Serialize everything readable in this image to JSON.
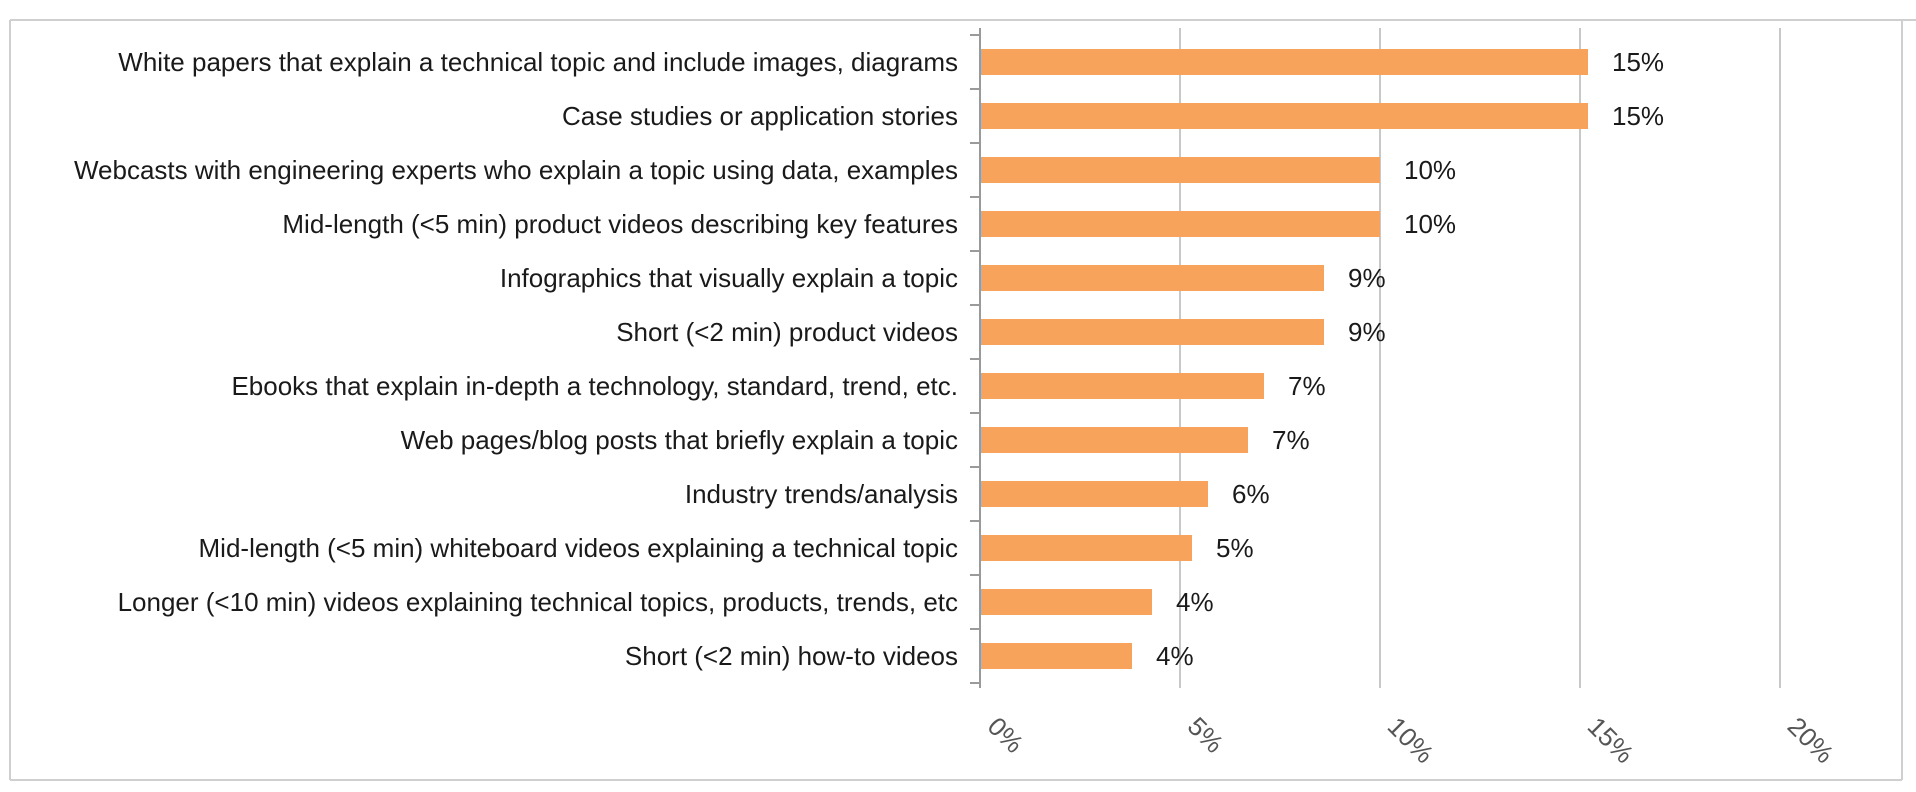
{
  "chart_data": {
    "type": "bar",
    "orientation": "horizontal",
    "categories": [
      "White papers that explain a technical topic and include images, diagrams",
      "Case studies or application stories",
      "Webcasts with engineering experts who explain a topic using data, examples",
      "Mid-length (<5 min) product videos describing key features",
      "Infographics that visually explain a topic",
      "Short (<2 min) product videos",
      "Ebooks that explain in-depth a technology, standard, trend, etc.",
      "Web pages/blog posts that briefly explain a topic",
      "Industry trends/analysis",
      "Mid-length (<5 min) whiteboard videos explaining a technical topic",
      "Longer (<10 min) videos explaining technical topics, products, trends, etc",
      "Short (<2 min) how-to videos"
    ],
    "values": [
      15.2,
      15.2,
      10.0,
      10.0,
      8.6,
      8.6,
      7.1,
      6.7,
      5.7,
      5.3,
      4.3,
      3.8
    ],
    "data_labels": [
      "15%",
      "15%",
      "10%",
      "10%",
      "9%",
      "9%",
      "7%",
      "7%",
      "6%",
      "5%",
      "4%",
      "4%"
    ],
    "x_ticks": [
      0,
      5,
      10,
      15,
      20
    ],
    "x_tick_labels": [
      "0%",
      "5%",
      "10%",
      "15%",
      "20%"
    ],
    "xlim": [
      0,
      20
    ],
    "grid": "vertical",
    "legend": "none",
    "colors": {
      "bar": "#F7A35C",
      "grid": "#c8c8c8",
      "axis": "#9a9a9a",
      "frame": "#cfcfcf"
    }
  }
}
